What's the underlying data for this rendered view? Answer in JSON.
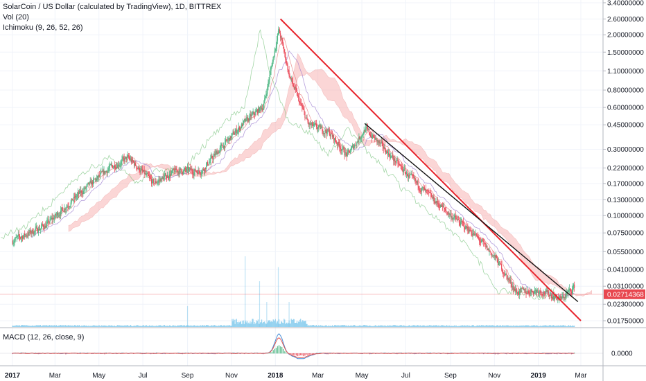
{
  "header": {
    "symbol_line": "SolarCoin / US Dollar (calculated by TradingView), 1D, BITTREX",
    "vol_line": "Vol (20)",
    "ichimoku_line": "Ichimoku (9, 26, 52, 26)",
    "macd_line": "MACD (12, 26, close, 9)"
  },
  "colors": {
    "up": "#53b987",
    "down": "#eb4d5c",
    "volume": "#7ec8ec",
    "trend_red": "#e8242c",
    "trend_black": "#111111",
    "cloud": "#f7a6a6",
    "price_label_bg": "#e8474f",
    "macd": "#4a90d9",
    "signal": "#e0554f"
  },
  "chart_data": {
    "type": "candlestick",
    "price_scale": "log",
    "x_ticks": [
      "2017",
      "Mar",
      "May",
      "Jul",
      "Sep",
      "Nov",
      "2018",
      "Mar",
      "May",
      "Jul",
      "Sep",
      "Nov",
      "2019",
      "Mar"
    ],
    "y_ticks": [
      "3.40000000",
      "2.60000000",
      "2.00000000",
      "1.50000000",
      "1.10000000",
      "0.80000000",
      "0.60000000",
      "0.45000000",
      "0.30000000",
      "0.22000000",
      "0.17000000",
      "0.13000000",
      "0.10000000",
      "0.07500000",
      "0.05500000",
      "0.04100000",
      "0.03100000",
      "0.02300000",
      "0.01750000"
    ],
    "y_tick_values": [
      3.4,
      2.6,
      2.0,
      1.5,
      1.1,
      0.8,
      0.6,
      0.45,
      0.3,
      0.22,
      0.17,
      0.13,
      0.1,
      0.075,
      0.055,
      0.041,
      0.031,
      0.023,
      0.0175
    ],
    "last_price": "0.02714368",
    "last_price_value": 0.02714368,
    "macd_tick": "0.0000",
    "close_path": [
      {
        "date": "2017-01-01",
        "price": 0.066
      },
      {
        "date": "2017-02-15",
        "price": 0.085
      },
      {
        "date": "2017-04-01",
        "price": 0.14
      },
      {
        "date": "2017-05-15",
        "price": 0.22
      },
      {
        "date": "2017-06-10",
        "price": 0.26
      },
      {
        "date": "2017-07-15",
        "price": 0.17
      },
      {
        "date": "2017-08-15",
        "price": 0.21
      },
      {
        "date": "2017-09-20",
        "price": 0.21
      },
      {
        "date": "2017-10-15",
        "price": 0.3
      },
      {
        "date": "2017-11-15",
        "price": 0.45
      },
      {
        "date": "2017-12-15",
        "price": 0.62
      },
      {
        "date": "2018-01-05",
        "price": 2.2
      },
      {
        "date": "2018-01-20",
        "price": 1.0
      },
      {
        "date": "2018-02-15",
        "price": 0.45
      },
      {
        "date": "2018-03-15",
        "price": 0.4
      },
      {
        "date": "2018-04-10",
        "price": 0.27
      },
      {
        "date": "2018-05-05",
        "price": 0.42
      },
      {
        "date": "2018-06-01",
        "price": 0.3
      },
      {
        "date": "2018-07-01",
        "price": 0.2
      },
      {
        "date": "2018-08-01",
        "price": 0.14
      },
      {
        "date": "2018-09-01",
        "price": 0.1
      },
      {
        "date": "2018-10-01",
        "price": 0.075
      },
      {
        "date": "2018-11-01",
        "price": 0.05
      },
      {
        "date": "2018-12-01",
        "price": 0.028
      },
      {
        "date": "2019-01-01",
        "price": 0.029
      },
      {
        "date": "2019-02-01",
        "price": 0.025
      },
      {
        "date": "2019-02-20",
        "price": 0.031
      }
    ],
    "trendlines": [
      {
        "name": "red",
        "from": {
          "date": "2018-01-08",
          "price": 2.6
        },
        "to": {
          "date": "2019-03-01",
          "price": 0.0175
        }
      },
      {
        "name": "black",
        "from": {
          "date": "2018-05-05",
          "price": 0.46
        },
        "to": {
          "date": "2019-02-25",
          "price": 0.024
        }
      }
    ],
    "volume_spikes": [
      {
        "date": "2017-09-01",
        "size": 0.25
      },
      {
        "date": "2017-11-20",
        "size": 0.85
      },
      {
        "date": "2017-12-10",
        "size": 0.55
      },
      {
        "date": "2017-12-20",
        "size": 0.3
      },
      {
        "date": "2018-01-05",
        "size": 0.72
      },
      {
        "date": "2018-01-20",
        "size": 0.3
      }
    ]
  }
}
